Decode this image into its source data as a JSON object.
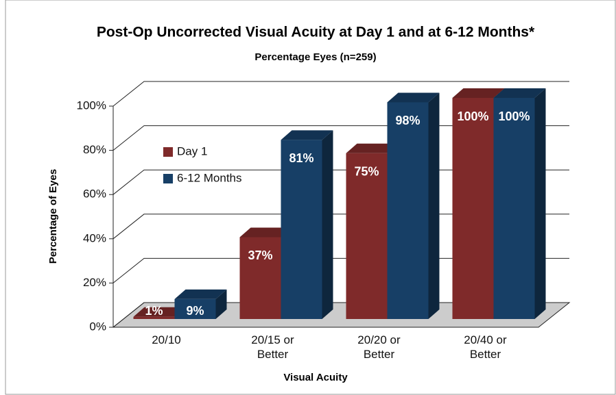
{
  "chart_data": {
    "type": "bar3d",
    "title": "Post-Op Uncorrected Visual Acuity at Day 1 and at 6-12 Months*",
    "subtitle": "Percentage Eyes (n=259)",
    "x_label": "Visual Acuity",
    "y_label": "Percentage of Eyes",
    "categories": [
      "20/10",
      "20/15 or Better",
      "20/20 or Better",
      "20/40 or Better"
    ],
    "series": [
      {
        "name": "Day 1",
        "color": "#7f2a2a",
        "values": [
          1,
          37,
          75,
          100
        ],
        "value_labels": [
          "1%",
          "37%",
          "75%",
          "100%"
        ]
      },
      {
        "name": "6-12 Months",
        "color": "#173f66",
        "values": [
          9,
          81,
          98,
          100
        ],
        "value_labels": [
          "9%",
          "81%",
          "98%",
          "100%"
        ]
      }
    ],
    "ylim": [
      0,
      100
    ],
    "yticks": [
      {
        "value": 0,
        "label": "0%"
      },
      {
        "value": 20,
        "label": "20%"
      },
      {
        "value": 40,
        "label": "40%"
      },
      {
        "value": 60,
        "label": "60%"
      },
      {
        "value": 80,
        "label": "80%"
      },
      {
        "value": 100,
        "label": "100%"
      }
    ],
    "grid": true,
    "legend": "upper left"
  }
}
